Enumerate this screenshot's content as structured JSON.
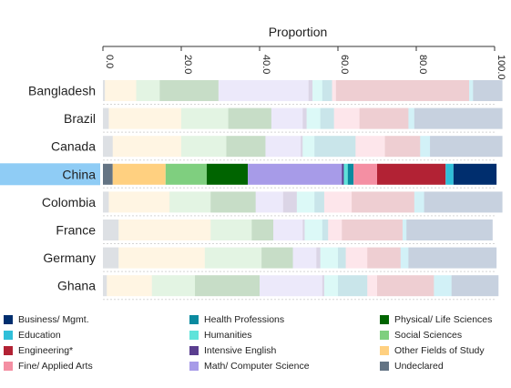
{
  "chart_data": {
    "type": "bar",
    "orientation": "horizontal",
    "stacked": true,
    "title": "Proportion",
    "xlim": [
      0,
      100
    ],
    "xticks": [
      "0.0",
      "20.0",
      "40.0",
      "60.0",
      "80.0",
      "100.0"
    ],
    "highlight_category": "China",
    "categories": [
      "Bangladesh",
      "Brazil",
      "Canada",
      "China",
      "Colombia",
      "France",
      "Germany",
      "Ghana"
    ],
    "series": [
      {
        "name": "Undeclared",
        "color": "#647484",
        "values": [
          0.5,
          1.5,
          2.5,
          2.5,
          1.5,
          4,
          4,
          1
        ]
      },
      {
        "name": "Other Fields of Study",
        "color": "#FFD080",
        "values": [
          8,
          18.5,
          17.5,
          13.5,
          15.5,
          23.5,
          22,
          11.5
        ]
      },
      {
        "name": "Social Sciences",
        "color": "#7FCF7F",
        "values": [
          6,
          12,
          11.5,
          10.5,
          10.5,
          10.5,
          14.5,
          11
        ]
      },
      {
        "name": "Physical/ Life Sciences",
        "color": "#006400",
        "values": [
          15,
          11,
          10,
          10.5,
          11.5,
          5.5,
          8,
          16.5
        ]
      },
      {
        "name": "Math/ Computer Science",
        "color": "#A79BE8",
        "values": [
          23,
          8,
          9,
          24,
          7,
          7.5,
          6,
          16
        ]
      },
      {
        "name": "Intensive English",
        "color": "#5A3E8F",
        "values": [
          1,
          1,
          0.5,
          0.5,
          3.5,
          0.5,
          1,
          0.5
        ]
      },
      {
        "name": "Humanities",
        "color": "#5FE3DA",
        "values": [
          2.5,
          3.5,
          3,
          1,
          4.5,
          4.5,
          4.5,
          3.5
        ]
      },
      {
        "name": "Health Professions",
        "color": "#0A8A9F",
        "values": [
          2.5,
          3.5,
          10.5,
          1.5,
          2.5,
          1.5,
          2,
          7.5
        ]
      },
      {
        "name": "Fine/ Applied Arts",
        "color": "#F48FA3",
        "values": [
          1,
          6.5,
          7.5,
          6,
          7,
          3.5,
          5.5,
          2.5
        ]
      },
      {
        "name": "Engineering*",
        "color": "#B22234",
        "values": [
          34,
          12.5,
          9,
          17.5,
          16,
          15.5,
          8.5,
          14.5
        ]
      },
      {
        "name": "Education",
        "color": "#30BFD9",
        "values": [
          1,
          1.5,
          2.5,
          2,
          2.5,
          1,
          2,
          4.5
        ]
      },
      {
        "name": "Business/ Mgmt.",
        "color": "#002E6E",
        "values": [
          7.5,
          22.5,
          18.5,
          11,
          20,
          22,
          22.5,
          12
        ]
      }
    ]
  },
  "legend": [
    {
      "label": "Business/ Mgmt.",
      "color": "#002E6E"
    },
    {
      "label": "Health Professions",
      "color": "#0A8A9F"
    },
    {
      "label": "Physical/ Life Sciences",
      "color": "#006400"
    },
    {
      "label": "Education",
      "color": "#30BFD9"
    },
    {
      "label": "Humanities",
      "color": "#5FE3DA"
    },
    {
      "label": "Social Sciences",
      "color": "#7FCF7F"
    },
    {
      "label": "Engineering*",
      "color": "#B22234"
    },
    {
      "label": "Intensive English",
      "color": "#5A3E8F"
    },
    {
      "label": "Other Fields of Study",
      "color": "#FFD080"
    },
    {
      "label": "Fine/ Applied Arts",
      "color": "#F48FA3"
    },
    {
      "label": "Math/ Computer Science",
      "color": "#A79BE8"
    },
    {
      "label": "Undeclared",
      "color": "#647484"
    }
  ]
}
